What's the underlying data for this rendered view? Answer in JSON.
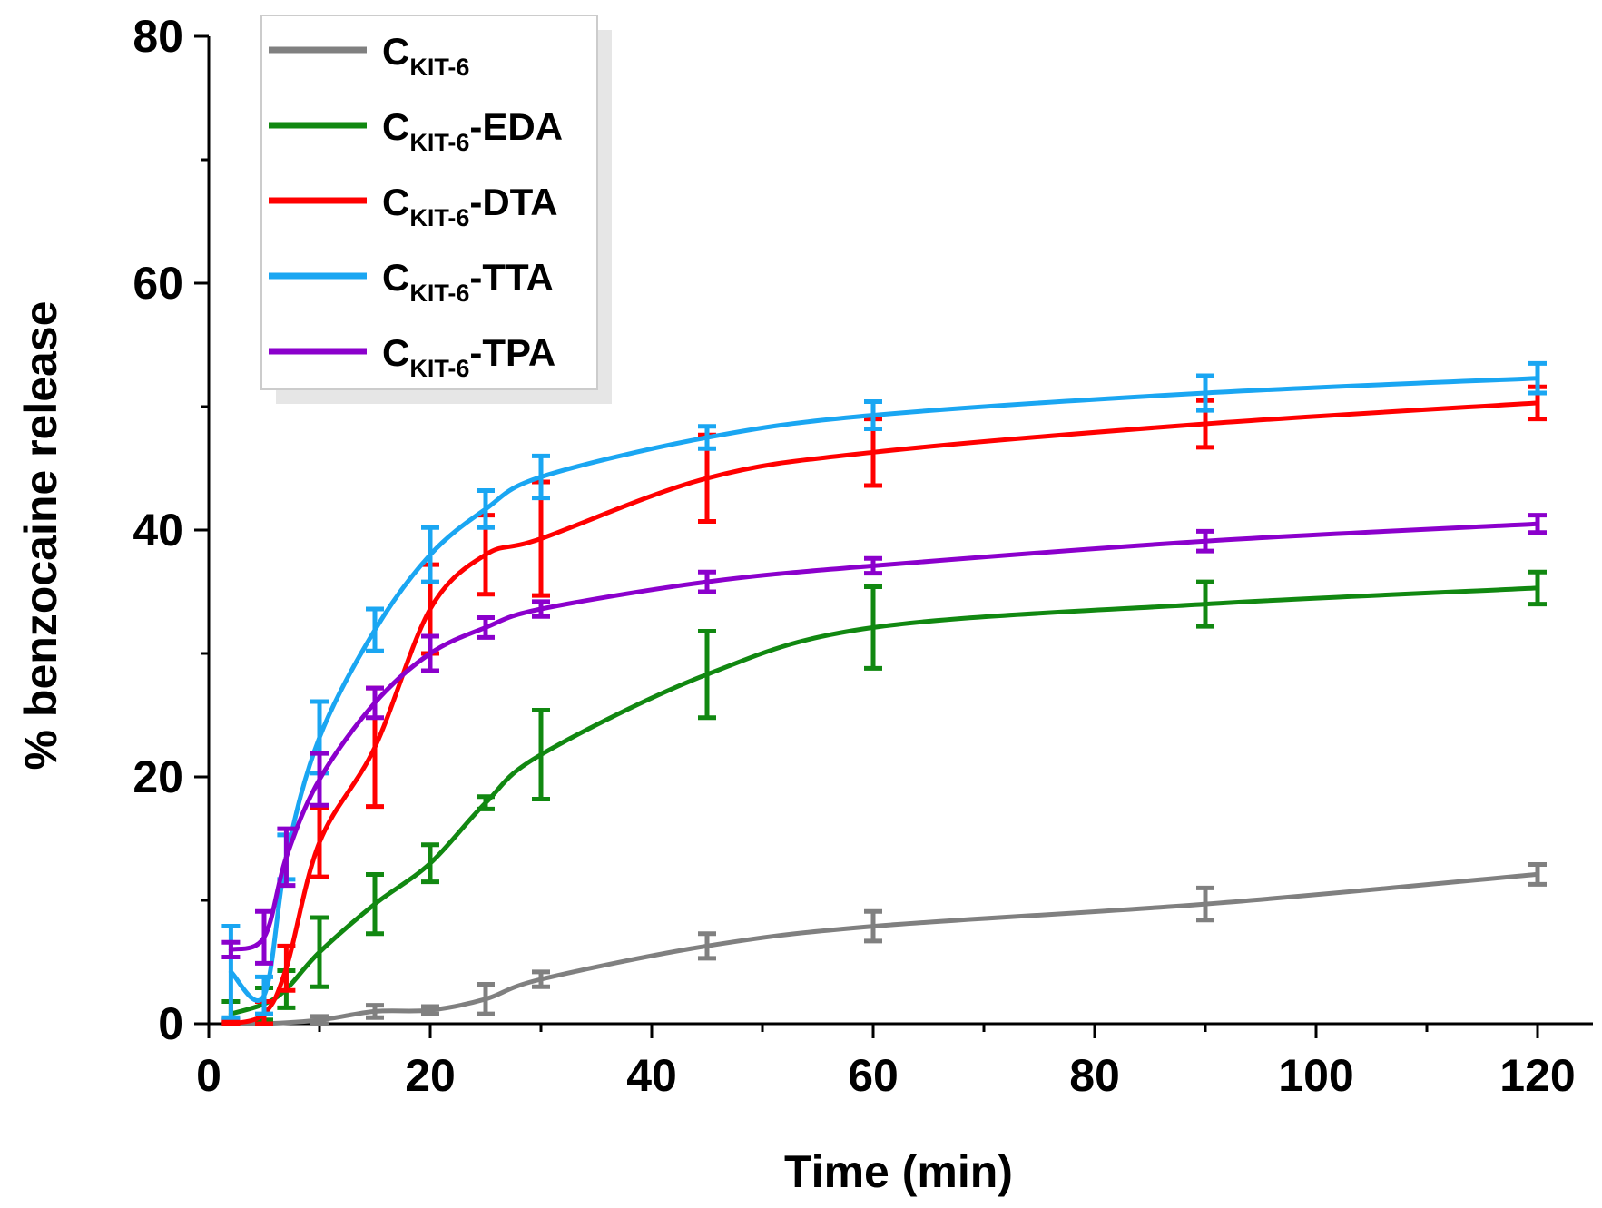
{
  "chart_data": {
    "type": "line",
    "title": "",
    "xlabel": "Time (min)",
    "ylabel": "% benzocaine release",
    "xlim": [
      0,
      125
    ],
    "ylim": [
      0,
      80
    ],
    "x_major_ticks": [
      0,
      20,
      40,
      60,
      80,
      100,
      120
    ],
    "x_tick_labels": [
      "0",
      "20",
      "40",
      "60",
      "80",
      "100",
      "120"
    ],
    "y_major_ticks": [
      0,
      20,
      40,
      60,
      80
    ],
    "y_tick_labels": [
      "0",
      "20",
      "40",
      "60",
      "80"
    ],
    "legend_position": "top-left",
    "series": [
      {
        "name": "CKIT-6",
        "label_base": "C",
        "label_sub": "KIT-6",
        "label_suffix": "",
        "color": "#808080",
        "x": [
          2,
          5,
          10,
          15,
          20,
          25,
          30,
          45,
          60,
          90,
          120
        ],
        "y": [
          0,
          0,
          0.3,
          1.0,
          1.1,
          2.0,
          3.6,
          6.3,
          7.9,
          9.7,
          12.1
        ],
        "error": [
          0.3,
          0.3,
          0.3,
          0.5,
          0.3,
          1.2,
          0.6,
          1.0,
          1.2,
          1.3,
          0.8
        ]
      },
      {
        "name": "CKIT-6-EDA",
        "label_base": "C",
        "label_sub": "KIT-6",
        "label_suffix": "-EDA",
        "color": "#118811",
        "x": [
          2,
          5,
          7,
          10,
          15,
          20,
          25,
          30,
          45,
          60,
          90,
          120
        ],
        "y": [
          0.8,
          1.6,
          2.8,
          5.8,
          9.7,
          13.0,
          17.9,
          21.8,
          28.3,
          32.1,
          34.0,
          35.3
        ],
        "error": [
          1.0,
          1.3,
          1.5,
          2.8,
          2.4,
          1.5,
          0.5,
          3.6,
          3.5,
          3.3,
          1.8,
          1.3
        ]
      },
      {
        "name": "CKIT-6-DTA",
        "label_base": "C",
        "label_sub": "KIT-6",
        "label_suffix": "-DTA",
        "color": "#ff0000",
        "x": [
          2,
          5,
          7,
          10,
          15,
          20,
          25,
          30,
          45,
          60,
          90,
          120
        ],
        "y": [
          0,
          0.8,
          4.5,
          14.7,
          22.4,
          33.6,
          38.0,
          39.3,
          44.2,
          46.3,
          48.6,
          50.3
        ],
        "error": [
          0.3,
          1.0,
          1.8,
          2.8,
          4.8,
          3.6,
          3.2,
          4.6,
          3.5,
          2.7,
          1.9,
          1.3
        ]
      },
      {
        "name": "CKIT-6-TTA",
        "label_base": "C",
        "label_sub": "KIT-6",
        "label_suffix": "-TTA",
        "color": "#1aa6f2",
        "x": [
          2,
          5,
          7,
          10,
          15,
          20,
          25,
          30,
          45,
          60,
          90,
          120
        ],
        "y": [
          4.2,
          2.3,
          13.5,
          23.2,
          31.9,
          38.0,
          41.7,
          44.3,
          47.5,
          49.3,
          51.1,
          52.3
        ],
        "error": [
          3.7,
          1.5,
          1.8,
          2.9,
          1.7,
          2.2,
          1.5,
          1.7,
          0.9,
          1.1,
          1.4,
          1.2
        ]
      },
      {
        "name": "CKIT-6-TPA",
        "label_base": "C",
        "label_sub": "KIT-6",
        "label_suffix": "-TPA",
        "color": "#8b00cc",
        "x": [
          2,
          5,
          7,
          10,
          15,
          20,
          25,
          30,
          45,
          60,
          90,
          120
        ],
        "y": [
          6.0,
          7.0,
          13.5,
          19.8,
          26.0,
          30.0,
          32.1,
          33.6,
          35.8,
          37.1,
          39.1,
          40.5
        ],
        "error": [
          0.6,
          2.1,
          2.3,
          2.1,
          1.2,
          1.4,
          0.8,
          0.6,
          0.8,
          0.6,
          0.8,
          0.7
        ]
      }
    ]
  }
}
